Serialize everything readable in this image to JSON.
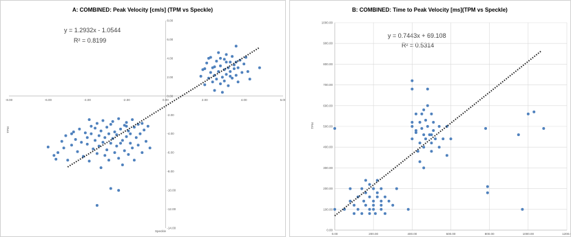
{
  "colors": {
    "point": "#4f81bd",
    "trend": "#1a1a1a",
    "axis": "#bfbfbf",
    "grid": "#d9d9d9",
    "text": "#595959"
  },
  "chart_data": [
    {
      "type": "scatter",
      "title": "A: COMBINED: Peak Velocity [cm/s] (TPM vs Speckle)",
      "xlabel": "Speckle",
      "ylabel": "TPM",
      "xlim": [
        -8,
        6
      ],
      "ylim": [
        -14,
        8
      ],
      "xticks": [
        "-8.00",
        "-6.00",
        "-4.00",
        "-2.00",
        "0.00",
        "2.00",
        "4.00",
        "6.00"
      ],
      "yticks": [
        "-14.00",
        "-12.00",
        "-10.00",
        "-8.00",
        "-6.00",
        "-4.00",
        "-2.00",
        "0.00",
        "2.00",
        "4.00",
        "6.00",
        "8.00"
      ],
      "x_ticks": [
        -8,
        -6,
        -4,
        -2,
        0,
        2,
        4,
        6
      ],
      "y_ticks": [
        -14,
        -12,
        -10,
        -8,
        -6,
        -4,
        -2,
        0,
        2,
        4,
        6,
        8
      ],
      "grid": false,
      "axes_through_origin": true,
      "equation": "y = 1.2932x - 1.0544",
      "r2": "R² = 0.8199",
      "trendline": {
        "slope": 1.2932,
        "intercept": -1.0544,
        "x_range": [
          -5,
          4.8
        ]
      },
      "points": [
        [
          -6.0,
          -5.4
        ],
        [
          -5.7,
          -6.3
        ],
        [
          -5.6,
          -6.7
        ],
        [
          -5.5,
          -6.0
        ],
        [
          -5.3,
          -4.8
        ],
        [
          -5.2,
          -5.5
        ],
        [
          -5.1,
          -4.2
        ],
        [
          -5.0,
          -6.8
        ],
        [
          -4.8,
          -5.2
        ],
        [
          -4.7,
          -3.8
        ],
        [
          -4.6,
          -4.6
        ],
        [
          -4.5,
          -5.9
        ],
        [
          -4.4,
          -3.5
        ],
        [
          -4.3,
          -4.9
        ],
        [
          -4.2,
          -6.4
        ],
        [
          -4.1,
          -3.9
        ],
        [
          -4.0,
          -5.1
        ],
        [
          -4.0,
          -4.4
        ],
        [
          -3.9,
          -6.9
        ],
        [
          -3.8,
          -3.2
        ],
        [
          -3.8,
          -4.0
        ],
        [
          -3.7,
          -5.6
        ],
        [
          -3.6,
          -4.7
        ],
        [
          -3.6,
          -3.4
        ],
        [
          -3.5,
          -6.1
        ],
        [
          -3.5,
          -2.9
        ],
        [
          -3.4,
          -4.2
        ],
        [
          -3.4,
          -5.3
        ],
        [
          -3.3,
          -3.7
        ],
        [
          -3.3,
          -7.6
        ],
        [
          -3.2,
          -4.9
        ],
        [
          -3.2,
          -2.6
        ],
        [
          -3.1,
          -6.3
        ],
        [
          -3.1,
          -4.4
        ],
        [
          -3.0,
          -3.3
        ],
        [
          -3.0,
          -5.7
        ],
        [
          -2.9,
          -4.0
        ],
        [
          -2.9,
          -6.8
        ],
        [
          -2.8,
          -3.0
        ],
        [
          -2.8,
          -5.0
        ],
        [
          -2.7,
          -4.5
        ],
        [
          -2.7,
          -2.7
        ],
        [
          -2.6,
          -6.0
        ],
        [
          -2.6,
          -3.8
        ],
        [
          -2.5,
          -5.3
        ],
        [
          -2.5,
          -4.1
        ],
        [
          -2.4,
          -2.4
        ],
        [
          -2.4,
          -6.6
        ],
        [
          -2.3,
          -3.5
        ],
        [
          -2.3,
          -5.0
        ],
        [
          -2.2,
          -4.7
        ],
        [
          -2.2,
          -7.3
        ],
        [
          -2.1,
          -3.1
        ],
        [
          -2.1,
          -5.8
        ],
        [
          -2.0,
          -4.3
        ],
        [
          -2.0,
          -2.8
        ],
        [
          -1.9,
          -6.2
        ],
        [
          -1.9,
          -3.7
        ],
        [
          -1.8,
          -5.0
        ],
        [
          -1.8,
          -4.0
        ],
        [
          -1.7,
          -2.5
        ],
        [
          -1.7,
          -5.5
        ],
        [
          -1.6,
          -3.3
        ],
        [
          -1.6,
          -6.8
        ],
        [
          -1.5,
          -4.4
        ],
        [
          -1.4,
          -3.0
        ],
        [
          -1.4,
          -5.2
        ],
        [
          -1.3,
          -4.0
        ],
        [
          -1.2,
          -6.0
        ],
        [
          -1.1,
          -3.6
        ],
        [
          -1.0,
          -4.8
        ],
        [
          -0.9,
          -3.2
        ],
        [
          -0.8,
          -5.5
        ],
        [
          -2.8,
          -9.8
        ],
        [
          -2.4,
          -10.0
        ],
        [
          -3.5,
          -11.6
        ],
        [
          -4.8,
          -4.0
        ],
        [
          -3.9,
          -2.5
        ],
        [
          -2.0,
          -3.2
        ],
        [
          -1.2,
          -2.9
        ],
        [
          1.8,
          2.1
        ],
        [
          1.9,
          2.8
        ],
        [
          2.0,
          1.2
        ],
        [
          2.1,
          3.5
        ],
        [
          2.2,
          1.9
        ],
        [
          2.3,
          2.5
        ],
        [
          2.3,
          4.1
        ],
        [
          2.4,
          1.5
        ],
        [
          2.4,
          3.0
        ],
        [
          2.5,
          2.2
        ],
        [
          2.5,
          0.6
        ],
        [
          2.6,
          3.7
        ],
        [
          2.6,
          1.8
        ],
        [
          2.7,
          2.6
        ],
        [
          2.7,
          4.6
        ],
        [
          2.8,
          1.3
        ],
        [
          2.8,
          3.2
        ],
        [
          2.9,
          2.0
        ],
        [
          2.9,
          0.4
        ],
        [
          3.0,
          2.8
        ],
        [
          3.0,
          3.9
        ],
        [
          3.0,
          1.6
        ],
        [
          3.1,
          2.3
        ],
        [
          3.1,
          4.4
        ],
        [
          3.2,
          3.0
        ],
        [
          3.2,
          1.1
        ],
        [
          3.3,
          2.6
        ],
        [
          3.3,
          3.6
        ],
        [
          3.4,
          1.9
        ],
        [
          3.4,
          4.2
        ],
        [
          3.5,
          2.9
        ],
        [
          3.5,
          3.3
        ],
        [
          3.6,
          2.2
        ],
        [
          3.6,
          5.3
        ],
        [
          3.7,
          3.0
        ],
        [
          3.7,
          1.5
        ],
        [
          3.8,
          3.8
        ],
        [
          3.9,
          2.5
        ],
        [
          4.0,
          3.4
        ],
        [
          4.1,
          4.1
        ],
        [
          4.2,
          2.6
        ],
        [
          4.3,
          1.8
        ],
        [
          4.8,
          3.0
        ],
        [
          2.2,
          4.0
        ],
        [
          2.5,
          3.1
        ],
        [
          2.8,
          4.0
        ],
        [
          3.1,
          3.6
        ],
        [
          3.3,
          2.1
        ],
        [
          3.6,
          3.6
        ],
        [
          2.0,
          2.9
        ]
      ]
    },
    {
      "type": "scatter",
      "title": "B: COMBINED: Time to Peak Velocity [ms](TPM vs Speckle)",
      "xlabel": "",
      "ylabel": "TPM",
      "xlim": [
        0,
        1200
      ],
      "ylim": [
        0,
        1000
      ],
      "xticks": [
        "0.00",
        "200.00",
        "400.00",
        "600.00",
        "800.00",
        "1000.00",
        "1200.0"
      ],
      "yticks": [
        "0.00",
        "100.00",
        "200.00",
        "300.00",
        "400.00",
        "500.00",
        "600.00",
        "700.00",
        "800.00",
        "900.00",
        "1000.00"
      ],
      "x_ticks": [
        0,
        200,
        400,
        600,
        800,
        1000,
        1200
      ],
      "y_ticks": [
        0,
        100,
        200,
        300,
        400,
        500,
        600,
        700,
        800,
        900,
        1000
      ],
      "grid": true,
      "axes_through_origin": false,
      "equation": "y = 0.7443x + 69.108",
      "r2": "R² = 0.5314",
      "trendline": {
        "slope": 0.7443,
        "intercept": 69.108,
        "x_range": [
          0,
          1070
        ]
      },
      "points": [
        [
          0,
          100
        ],
        [
          0,
          490
        ],
        [
          50,
          100
        ],
        [
          80,
          200
        ],
        [
          80,
          140
        ],
        [
          100,
          80
        ],
        [
          100,
          120
        ],
        [
          120,
          160
        ],
        [
          120,
          100
        ],
        [
          140,
          200
        ],
        [
          140,
          80
        ],
        [
          150,
          140
        ],
        [
          160,
          120
        ],
        [
          160,
          240
        ],
        [
          160,
          180
        ],
        [
          180,
          100
        ],
        [
          180,
          160
        ],
        [
          180,
          80
        ],
        [
          180,
          220
        ],
        [
          200,
          140
        ],
        [
          200,
          120
        ],
        [
          200,
          200
        ],
        [
          200,
          100
        ],
        [
          210,
          80
        ],
        [
          220,
          180
        ],
        [
          220,
          160
        ],
        [
          220,
          240
        ],
        [
          240,
          140
        ],
        [
          240,
          120
        ],
        [
          240,
          100
        ],
        [
          240,
          200
        ],
        [
          260,
          160
        ],
        [
          260,
          80
        ],
        [
          280,
          140
        ],
        [
          300,
          120
        ],
        [
          320,
          200
        ],
        [
          380,
          100
        ],
        [
          400,
          680
        ],
        [
          400,
          720
        ],
        [
          400,
          500
        ],
        [
          400,
          440
        ],
        [
          420,
          560
        ],
        [
          420,
          470
        ],
        [
          430,
          380
        ],
        [
          440,
          520
        ],
        [
          440,
          420
        ],
        [
          440,
          330
        ],
        [
          450,
          490
        ],
        [
          450,
          560
        ],
        [
          460,
          460
        ],
        [
          460,
          400
        ],
        [
          460,
          300
        ],
        [
          470,
          530
        ],
        [
          470,
          440
        ],
        [
          480,
          680
        ],
        [
          480,
          600
        ],
        [
          480,
          500
        ],
        [
          490,
          460
        ],
        [
          500,
          560
        ],
        [
          500,
          380
        ],
        [
          500,
          420
        ],
        [
          510,
          520
        ],
        [
          510,
          480
        ],
        [
          520,
          440
        ],
        [
          540,
          500
        ],
        [
          540,
          400
        ],
        [
          560,
          440
        ],
        [
          580,
          500
        ],
        [
          580,
          360
        ],
        [
          600,
          440
        ],
        [
          780,
          490
        ],
        [
          790,
          210
        ],
        [
          790,
          180
        ],
        [
          950,
          460
        ],
        [
          970,
          100
        ],
        [
          1000,
          560
        ],
        [
          1080,
          490
        ],
        [
          1030,
          570
        ],
        [
          460,
          580
        ],
        [
          420,
          480
        ],
        [
          500,
          460
        ],
        [
          400,
          520
        ]
      ]
    }
  ]
}
